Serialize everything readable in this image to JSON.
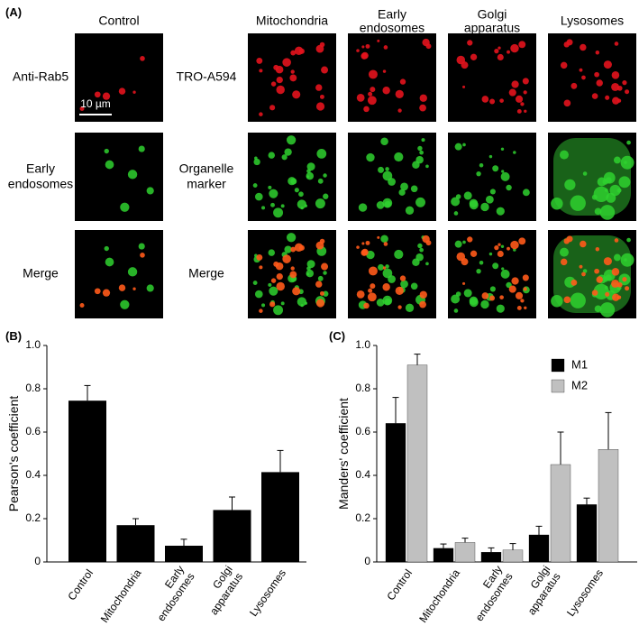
{
  "panel_a": {
    "label": "(A)",
    "column_headers": [
      "Control",
      "Mitochondria",
      "Early endosomes",
      "Golgi apparatus",
      "Lysosomes"
    ],
    "control_row_labels": [
      "Anti-Rab5",
      "Early endosomes",
      "Merge"
    ],
    "organelle_row_labels": [
      "TRO-A594",
      "Organelle marker",
      "Merge"
    ],
    "scale_bar": "10 µm"
  },
  "chart_data": [
    {
      "type": "bar",
      "panel_label": "(B)",
      "y_label": "Pearson's coefficient",
      "categories": [
        "Control",
        "Mitochondria",
        "Early endosomes",
        "Golgi apparatus",
        "Lysosomes"
      ],
      "values": [
        0.745,
        0.17,
        0.075,
        0.24,
        0.415
      ],
      "errors": [
        0.07,
        0.03,
        0.03,
        0.06,
        0.1
      ],
      "color": "#000000",
      "ylim": [
        0,
        1
      ],
      "yticks": [
        0,
        0.2,
        0.4,
        0.6,
        0.8,
        {
          "value": 1,
          "label": "1.0"
        }
      ]
    },
    {
      "type": "bar",
      "panel_label": "(C)",
      "y_label": "Manders' coefficient",
      "categories": [
        "Control",
        "Mitochondria",
        "Early endosomes",
        "Golgi apparatus",
        "Lysosomes"
      ],
      "series": [
        {
          "name": "M1",
          "color": "#000000",
          "values": [
            0.64,
            0.063,
            0.045,
            0.125,
            0.265
          ],
          "errors": [
            0.12,
            0.02,
            0.02,
            0.04,
            0.03
          ]
        },
        {
          "name": "M2",
          "color": "#c0c0c0",
          "values": [
            0.91,
            0.09,
            0.055,
            0.45,
            0.52
          ],
          "errors": [
            0.05,
            0.02,
            0.03,
            0.15,
            0.17
          ]
        }
      ],
      "ylim": [
        0,
        1
      ],
      "yticks": [
        0,
        0.2,
        0.4,
        0.6,
        0.8,
        {
          "value": 1,
          "label": "1.0"
        }
      ],
      "legend": "top-right"
    }
  ]
}
